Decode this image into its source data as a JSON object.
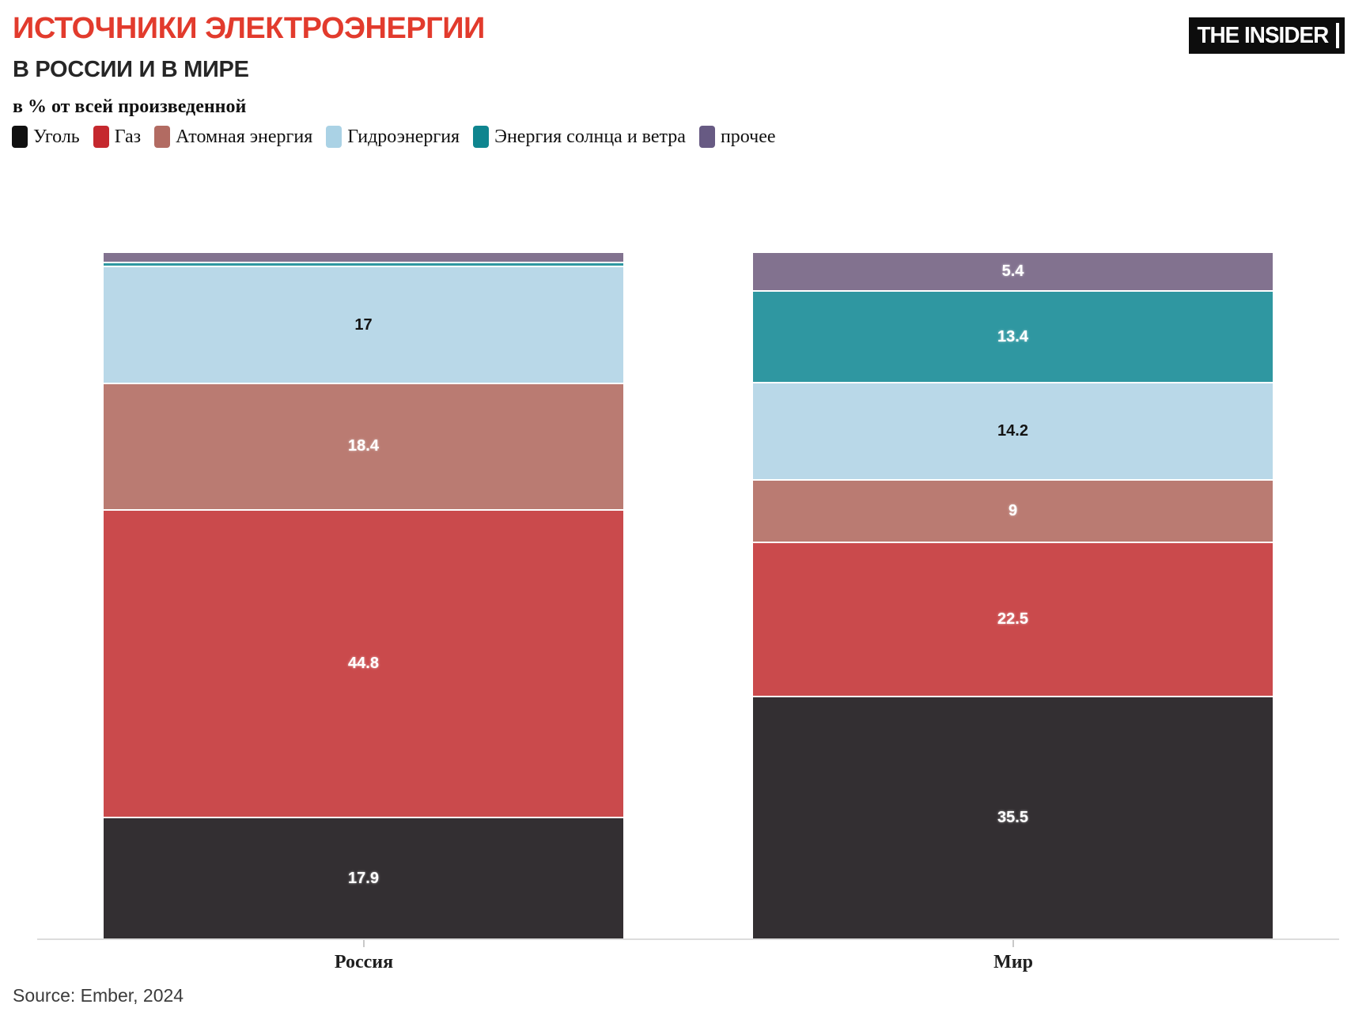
{
  "header": {
    "title": "ИСТОЧНИКИ ЭЛЕКТРОЭНЕРГИИ",
    "subtitle": "В РОССИИ И В МИРЕ",
    "description": "в % от всей произведенной"
  },
  "logo": {
    "text": "THE INSIDER"
  },
  "chart_data": {
    "type": "bar",
    "stacked": true,
    "unit": "%",
    "title": "Источники электроэнергии в России и в мире, в % от всей произведенной",
    "categories": [
      "Россия",
      "Мир"
    ],
    "ylim": [
      0,
      100
    ],
    "grid": false,
    "legend_position": "top",
    "series": [
      {
        "name": "Уголь",
        "color": "#332f32",
        "legend_color": "#101010",
        "label_dark": false,
        "values": [
          17.9,
          35.5
        ],
        "display_values": [
          "17.9",
          "35.5"
        ]
      },
      {
        "name": "Газ",
        "color": "#ca4a4c",
        "legend_color": "#c5282e",
        "label_dark": false,
        "values": [
          44.8,
          22.5
        ],
        "display_values": [
          "44.8",
          "22.5"
        ]
      },
      {
        "name": "Атомная энергия",
        "color": "#ba7b72",
        "legend_color": "#b26b62",
        "label_dark": false,
        "values": [
          18.4,
          9
        ],
        "display_values": [
          "18.4",
          "9"
        ]
      },
      {
        "name": "Гидроэнергия",
        "color": "#b9d8e8",
        "legend_color": "#aad2e5",
        "label_dark": true,
        "values": [
          17,
          14.2
        ],
        "display_values": [
          "17",
          "14.2"
        ]
      },
      {
        "name": "Энергия солнца и ветра",
        "color": "#2f97a1",
        "legend_color": "#0f858f",
        "label_dark": false,
        "values": [
          0.6,
          13.4
        ],
        "display_values": [
          null,
          "13.4"
        ]
      },
      {
        "name": "прочее",
        "color": "#82728f",
        "legend_color": "#675a83",
        "label_dark": false,
        "values": [
          1.3,
          5.4
        ],
        "display_values": [
          null,
          "5.4"
        ]
      }
    ]
  },
  "footer": {
    "source": "Source: Ember, 2024"
  }
}
